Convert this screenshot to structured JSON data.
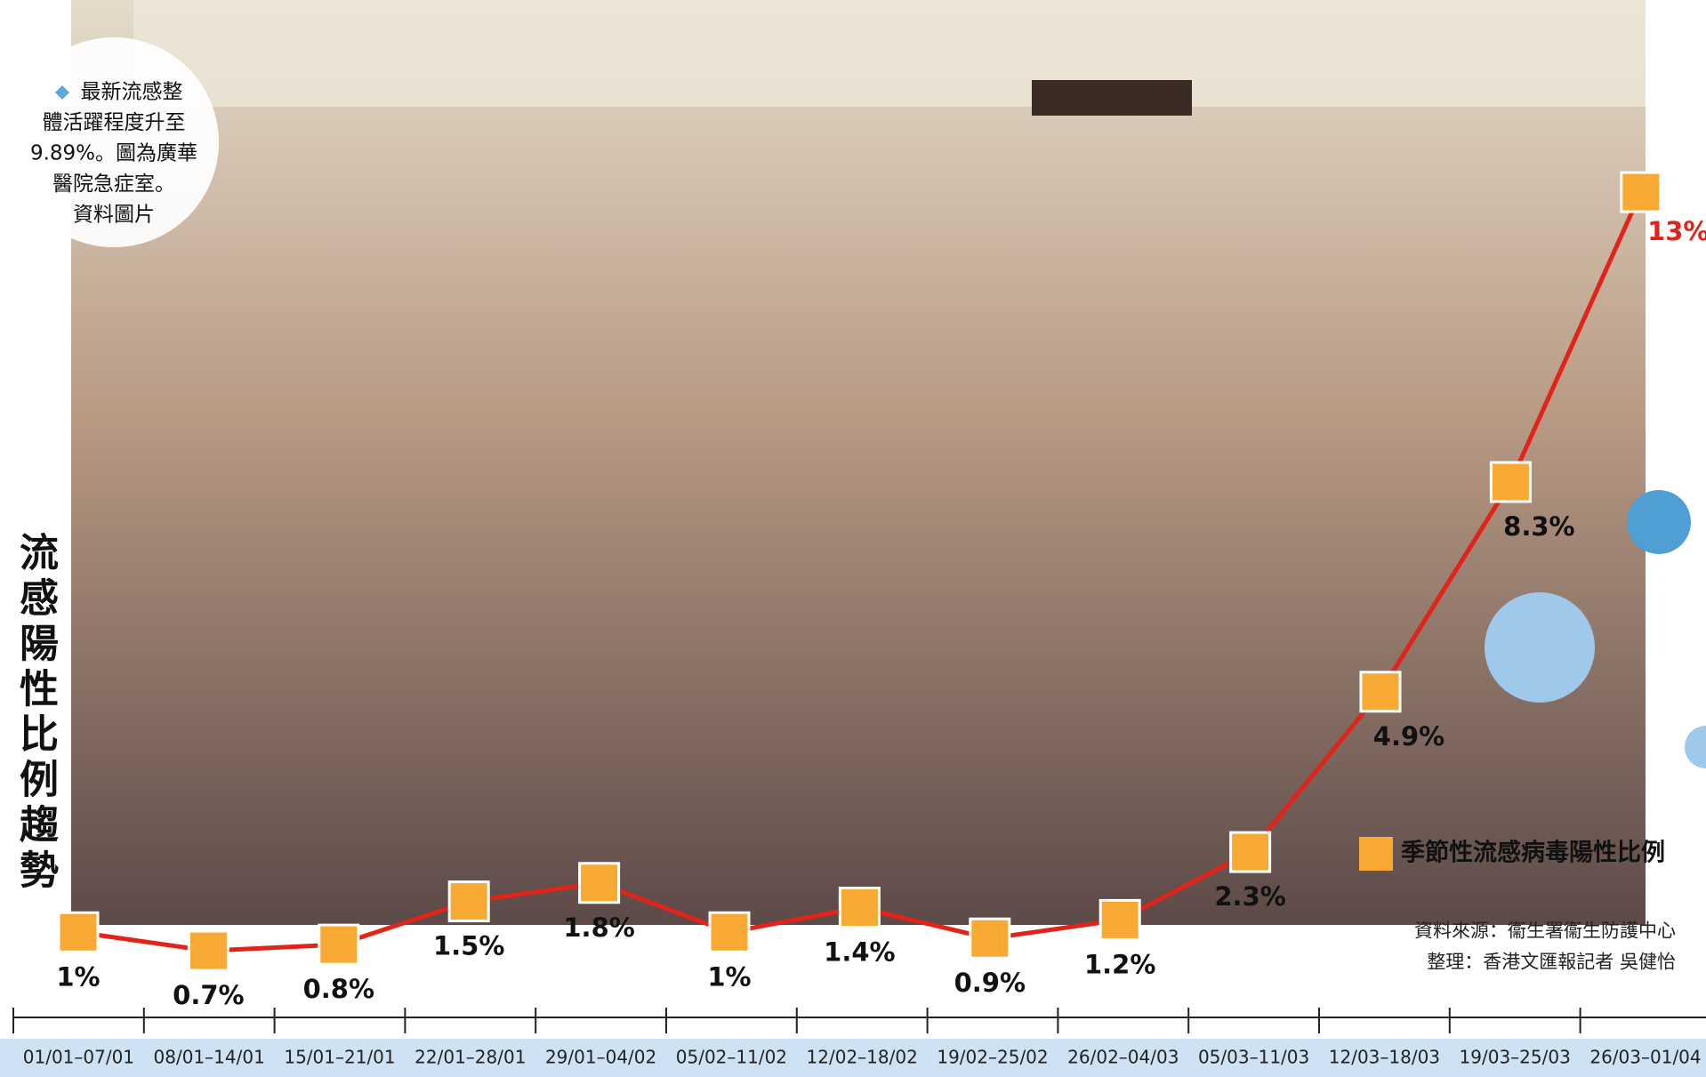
{
  "chart_data": {
    "type": "line",
    "title": "流感陽性比例趨勢",
    "caption": [
      "最新流感整",
      "體活躍程度升至",
      "9.89%。圖為廣華",
      "醫院急症室。",
      "資料圖片"
    ],
    "categories": [
      "01/01–07/01",
      "08/01–14/01",
      "15/01–21/01",
      "22/01–28/01",
      "29/01–04/02",
      "05/02–11/02",
      "12/02–18/02",
      "19/02–25/02",
      "26/02–04/03",
      "05/03–11/03",
      "12/03–18/03",
      "19/03–25/03",
      "26/03–01/04"
    ],
    "series": [
      {
        "name": "季節性流感病毒陽性比例",
        "color": "#f7a933",
        "values": [
          1,
          0.7,
          0.8,
          1.5,
          1.8,
          1,
          1.4,
          0.9,
          1.2,
          2.3,
          4.9,
          8.3,
          13
        ],
        "value_labels": [
          "1%",
          "0.7%",
          "0.8%",
          "1.5%",
          "1.8%",
          "1%",
          "1.4%",
          "0.9%",
          "1.2%",
          "2.3%",
          "4.9%",
          "8.3%",
          "13%"
        ]
      }
    ],
    "line_color": "#e2231a",
    "highlight_color": "#e2231a",
    "source": [
      "資料來源：衞生署衞生防護中心",
      "整理：香港文匯報記者 吳健怡"
    ]
  }
}
